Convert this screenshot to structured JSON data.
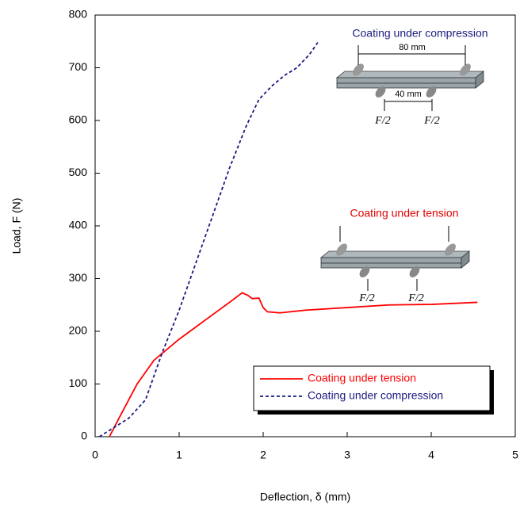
{
  "chart_data": {
    "type": "line",
    "x_label": "Deflection, δ (mm)",
    "y_label": "Load, F (N)",
    "xlim": [
      0,
      5
    ],
    "xticks": [
      0,
      1,
      2,
      3,
      4,
      5
    ],
    "ylim": [
      0,
      800
    ],
    "yticks": [
      0,
      100,
      200,
      300,
      400,
      500,
      600,
      700,
      800
    ],
    "grid": false,
    "legend": "lower right",
    "series": [
      {
        "name": "Coating under tension",
        "color": "#ff0000",
        "dash": false,
        "x": [
          0.17,
          0.3,
          0.5,
          0.7,
          1.0,
          1.3,
          1.6,
          1.75,
          1.82,
          1.87,
          1.95,
          2.0,
          2.05,
          2.2,
          2.5,
          3.0,
          3.5,
          4.0,
          4.55
        ],
        "values": [
          0,
          40,
          100,
          145,
          185,
          220,
          255,
          273,
          268,
          262,
          263,
          245,
          237,
          235,
          240,
          245,
          250,
          251,
          255
        ]
      },
      {
        "name": "Coating under compression",
        "color": "#1a1a80",
        "dash": true,
        "x": [
          0.05,
          0.2,
          0.4,
          0.6,
          0.8,
          1.0,
          1.2,
          1.4,
          1.6,
          1.8,
          1.95,
          2.1,
          2.25,
          2.4,
          2.55,
          2.65
        ],
        "values": [
          0,
          15,
          35,
          70,
          160,
          240,
          330,
          420,
          510,
          590,
          640,
          665,
          685,
          700,
          725,
          748
        ]
      }
    ],
    "annotations": [
      "Coating under compression",
      "80 mm",
      "40 mm",
      "F/2",
      "F/2",
      "Coating under tension",
      "F/2",
      "F/2"
    ]
  }
}
